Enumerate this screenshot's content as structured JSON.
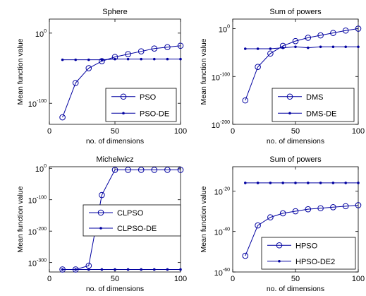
{
  "chart_data": [
    {
      "type": "line",
      "title": "Sphere",
      "xlabel": "no. of dimensions",
      "ylabel": "Mean function value",
      "xlim": [
        0,
        100
      ],
      "xticks": [
        0,
        50,
        100
      ],
      "yscale": "log",
      "yexp_range": [
        -130,
        20
      ],
      "yticks": [
        {
          "base": "10",
          "exp": "0",
          "e": 0
        },
        {
          "base": "10",
          "exp": "-100",
          "e": -100
        }
      ],
      "grid": false,
      "legend_position": "bottom-right",
      "line_color": "#0000a0",
      "x": [
        10,
        20,
        30,
        40,
        50,
        60,
        70,
        80,
        90,
        100
      ],
      "series": [
        {
          "name": "PSO",
          "marker": "circle",
          "log10_values": [
            -120,
            -71,
            -50,
            -40,
            -34,
            -30,
            -26,
            -22,
            -20,
            -18
          ]
        },
        {
          "name": "PSO-DE",
          "marker": "dot",
          "log10_values": [
            -38,
            -38,
            -38,
            -38,
            -37,
            -37,
            -37,
            -37,
            -37,
            -37
          ]
        }
      ]
    },
    {
      "type": "line",
      "title": "Sum of powers",
      "xlabel": "no. of dimensions",
      "ylabel": "Mean function value",
      "xlim": [
        0,
        100
      ],
      "xticks": [
        0,
        50,
        100
      ],
      "yscale": "log",
      "yexp_range": [
        -200,
        20
      ],
      "yticks": [
        {
          "base": "10",
          "exp": "0",
          "e": 0
        },
        {
          "base": "10",
          "exp": "-100",
          "e": -100
        },
        {
          "base": "10",
          "exp": "-200",
          "e": -200
        }
      ],
      "grid": false,
      "legend_position": "bottom-right",
      "line_color": "#0000a0",
      "x": [
        10,
        20,
        30,
        40,
        50,
        60,
        70,
        80,
        90,
        100
      ],
      "series": [
        {
          "name": "DMS",
          "marker": "circle",
          "log10_values": [
            -150,
            -80,
            -52,
            -36,
            -26,
            -19,
            -14,
            -9,
            -4,
            0
          ]
        },
        {
          "name": "DMS-DE",
          "marker": "dot",
          "log10_values": [
            -42,
            -42,
            -42,
            -40,
            -38,
            -40,
            -38,
            -38,
            -38,
            -38
          ]
        }
      ]
    },
    {
      "type": "line",
      "title": "Michelwicz",
      "xlabel": "no. of dimensions",
      "ylabel": "Mean function value",
      "xlim": [
        0,
        100
      ],
      "xticks": [
        0,
        50,
        100
      ],
      "yscale": "log",
      "yexp_range": [
        -330,
        5
      ],
      "yticks": [
        {
          "base": "10",
          "exp": "0",
          "e": 0
        },
        {
          "base": "10",
          "exp": "-100",
          "e": -100
        },
        {
          "base": "10",
          "exp": "-200",
          "e": -200
        },
        {
          "base": "10",
          "exp": "-300",
          "e": -300
        }
      ],
      "grid": false,
      "legend_position": "center-left",
      "line_color": "#0000a0",
      "x": [
        10,
        20,
        30,
        40,
        50,
        60,
        70,
        80,
        90,
        100
      ],
      "series": [
        {
          "name": "CLPSO",
          "marker": "circle",
          "log10_values": [
            -322,
            -322,
            -310,
            -85,
            -5,
            -5,
            -5,
            -5,
            -5,
            -5
          ]
        },
        {
          "name": "CLPSO-DE",
          "marker": "dot",
          "log10_values": [
            -322,
            -322,
            -322,
            -322,
            -322,
            -322,
            -322,
            -322,
            -322,
            -322
          ]
        }
      ]
    },
    {
      "type": "line",
      "title": "Sum of powers",
      "xlabel": "no. of dimensions",
      "ylabel": "Mean function value",
      "xlim": [
        0,
        100
      ],
      "xticks": [
        0,
        50,
        100
      ],
      "yscale": "log",
      "yexp_range": [
        -60,
        -8
      ],
      "yticks": [
        {
          "base": "10",
          "exp": "-20",
          "e": -20
        },
        {
          "base": "10",
          "exp": "-40",
          "e": -40
        },
        {
          "base": "10",
          "exp": "-60",
          "e": -60
        }
      ],
      "grid": false,
      "legend_position": "bottom-right",
      "line_color": "#0000a0",
      "x": [
        10,
        20,
        30,
        40,
        50,
        60,
        70,
        80,
        90,
        100
      ],
      "series": [
        {
          "name": "HPSO",
          "marker": "circle",
          "log10_values": [
            -52,
            -37,
            -33,
            -31,
            -30,
            -29,
            -28.5,
            -28,
            -27.5,
            -27
          ]
        },
        {
          "name": "HPSO-DE2",
          "marker": "dot",
          "log10_values": [
            -16,
            -16,
            -16,
            -16,
            -16,
            -16,
            -16,
            -16,
            -16,
            -16
          ]
        }
      ]
    }
  ]
}
